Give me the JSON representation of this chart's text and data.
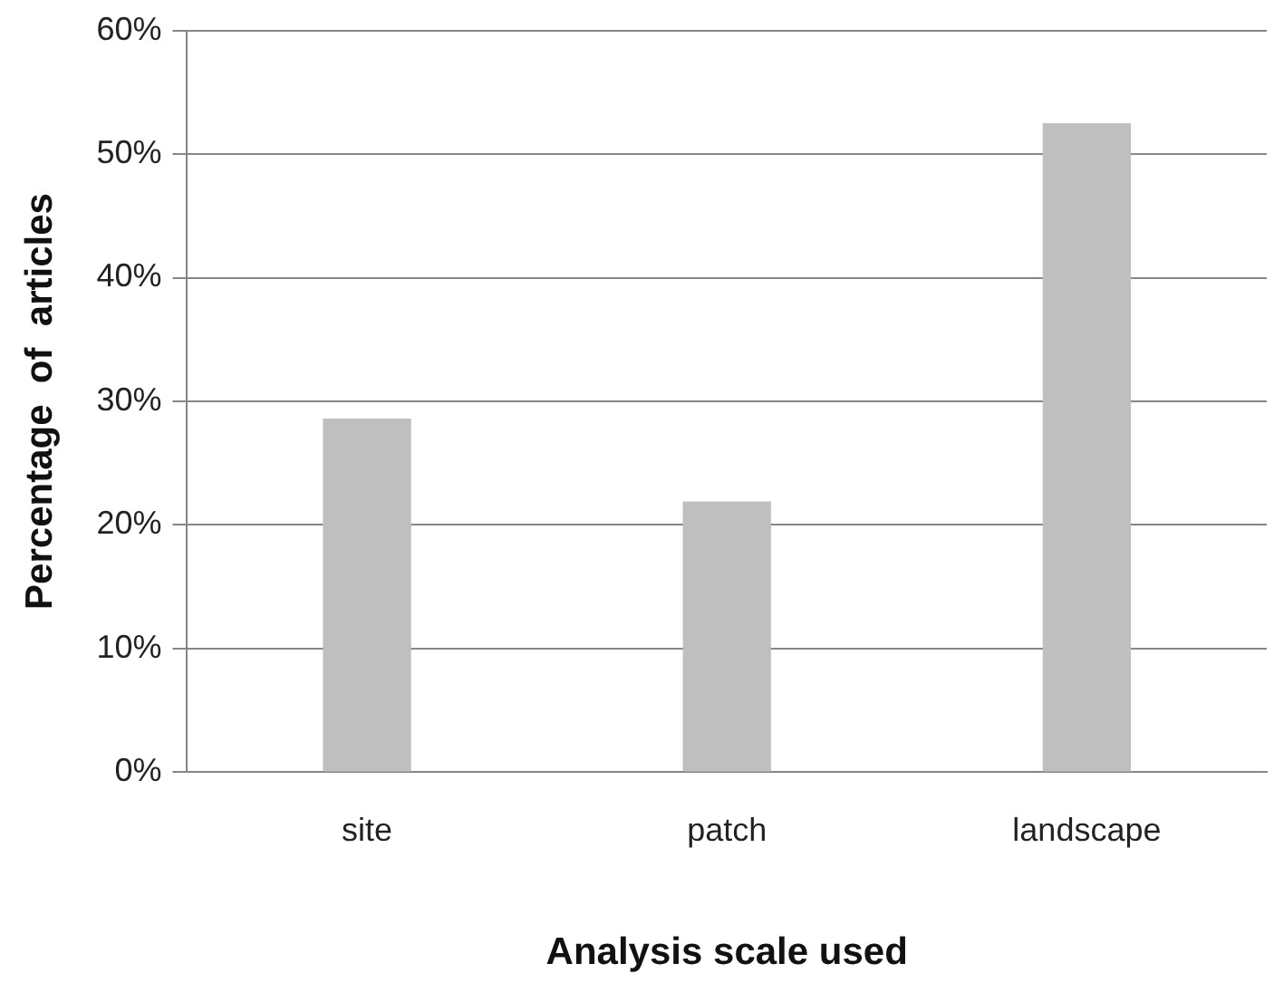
{
  "chart_data": {
    "type": "bar",
    "xlabel": "Analysis scale used",
    "ylabel": "Percentage  of  articles",
    "categories": [
      "site",
      "patch",
      "landscape"
    ],
    "values": [
      28.6,
      21.9,
      52.5
    ],
    "color": "#bfbfbf",
    "ylim": [
      0,
      60
    ],
    "yticks": [
      {
        "value": 0,
        "label": "0%"
      },
      {
        "value": 10,
        "label": "10%"
      },
      {
        "value": 20,
        "label": "20%"
      },
      {
        "value": 30,
        "label": "30%"
      },
      {
        "value": 40,
        "label": "40%"
      },
      {
        "value": 50,
        "label": "50%"
      },
      {
        "value": 60,
        "label": "60%"
      }
    ],
    "grid": "y",
    "legend": false
  }
}
